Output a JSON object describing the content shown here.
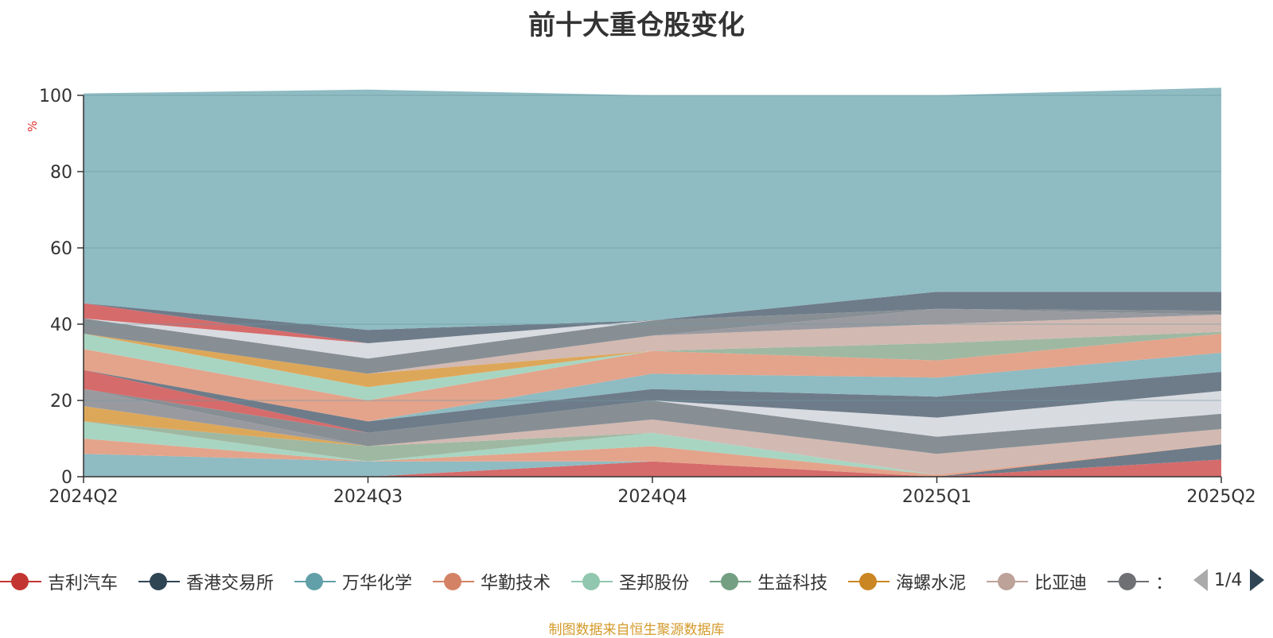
{
  "title": "前十大重仓股变化",
  "source_note": "制图数据来自恒生聚源数据库",
  "pager": {
    "text": "1/4"
  },
  "legend": [
    {
      "name": "吉利汽车",
      "color": "#c23531"
    },
    {
      "name": "香港交易所",
      "color": "#2f4554"
    },
    {
      "name": "万华化学",
      "color": "#61a0a8"
    },
    {
      "name": "华勤技术",
      "color": "#d48265"
    },
    {
      "name": "圣邦股份",
      "color": "#91c7ae"
    },
    {
      "name": "生益科技",
      "color": "#749f83"
    },
    {
      "name": "海螺水泥",
      "color": "#ca8622"
    },
    {
      "name": "比亚迪",
      "color": "#bda29a"
    },
    {
      "name": "：",
      "color": "#6e7074"
    }
  ],
  "chart_data": {
    "type": "area",
    "title": "前十大重仓股变化",
    "ylabel": "%",
    "ylim": [
      0,
      100
    ],
    "yticks": [
      0,
      20,
      40,
      60,
      80,
      100
    ],
    "categories": [
      "2024Q2",
      "2024Q3",
      "2024Q4",
      "2025Q1",
      "2025Q2"
    ],
    "grid": true,
    "stacked": true,
    "series": [
      {
        "color": "#d66b6b",
        "values": [
          0,
          0,
          4,
          0,
          4.5
        ]
      },
      {
        "color": "#6e7c8a",
        "values": [
          0,
          0,
          0,
          0,
          4
        ]
      },
      {
        "color": "#8fbbc2",
        "values": [
          6,
          4,
          0,
          0,
          0
        ]
      },
      {
        "color": "#e3a48b",
        "values": [
          4,
          0,
          4,
          0.5,
          0
        ]
      },
      {
        "color": "#a8d5c2",
        "values": [
          4.5,
          0,
          3.5,
          0,
          0
        ]
      },
      {
        "color": "#9fb8a2",
        "values": [
          0,
          4,
          0,
          0,
          0
        ]
      },
      {
        "color": "#dda75a",
        "values": [
          4,
          0,
          0,
          0,
          0
        ]
      },
      {
        "color": "#d2b9b2",
        "values": [
          0,
          0,
          3.5,
          5.5,
          4
        ]
      },
      {
        "color": "#999a9f",
        "values": [
          4.5,
          0,
          0,
          0,
          0
        ]
      },
      {
        "color": "#878f94",
        "values": [
          0,
          3.5,
          5,
          4.5,
          4
        ]
      },
      {
        "color": "#d8dbe0",
        "values": [
          0,
          0,
          0,
          5,
          6
        ]
      },
      {
        "color": "#d66b6b",
        "values": [
          5,
          0,
          0,
          0,
          0
        ]
      },
      {
        "color": "#6e7c8a",
        "values": [
          0,
          3,
          3,
          5.5,
          5
        ]
      },
      {
        "color": "#8fbbc2",
        "values": [
          0,
          0,
          4,
          5,
          5
        ]
      },
      {
        "color": "#e3a48b",
        "values": [
          5.5,
          5.5,
          6,
          4.5,
          5
        ]
      },
      {
        "color": "#a8d5c2",
        "values": [
          4,
          3.5,
          0,
          0,
          0
        ]
      },
      {
        "color": "#9fb8a2",
        "values": [
          0,
          0,
          0,
          4.5,
          0.5
        ]
      },
      {
        "color": "#dda75a",
        "values": [
          0,
          3.5,
          0,
          0,
          0
        ]
      },
      {
        "color": "#d2b9b2",
        "values": [
          0,
          0,
          4,
          5,
          4.5
        ]
      },
      {
        "color": "#999a9f",
        "values": [
          0,
          0,
          0,
          4,
          0
        ]
      },
      {
        "color": "#878f94",
        "values": [
          4,
          4,
          4,
          0,
          1
        ]
      },
      {
        "color": "#d8dbe0",
        "values": [
          0,
          4,
          0,
          0,
          0
        ]
      },
      {
        "color": "#d66b6b",
        "values": [
          4,
          0,
          0,
          0,
          0
        ]
      },
      {
        "color": "#6e7c8a",
        "values": [
          0,
          3.5,
          0,
          4.5,
          5
        ]
      },
      {
        "color": "#8fbbc2",
        "values": [
          55,
          63,
          59,
          51.5,
          53.5
        ]
      }
    ]
  }
}
